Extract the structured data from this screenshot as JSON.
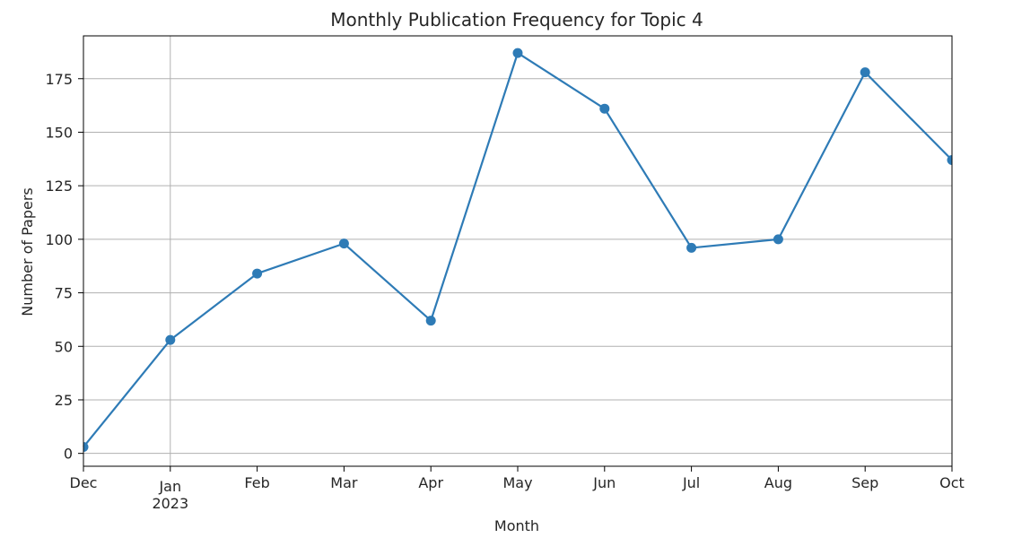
{
  "chart_data": {
    "type": "line",
    "title": "Monthly Publication Frequency for Topic 4",
    "xlabel": "Month",
    "ylabel": "Number of Papers",
    "x": [
      "2022-12",
      "2023-01",
      "2023-02",
      "2023-03",
      "2023-04",
      "2023-05",
      "2023-06",
      "2023-07",
      "2023-08",
      "2023-09",
      "2023-10"
    ],
    "categories": [
      "Dec",
      "Jan",
      "Feb",
      "Mar",
      "Apr",
      "May",
      "Jun",
      "Jul",
      "Aug",
      "Sep",
      "Oct"
    ],
    "year_label": "2023",
    "values": [
      3,
      53,
      84,
      98,
      62,
      187,
      161,
      96,
      100,
      178,
      137
    ],
    "ylim": [
      -6,
      195
    ],
    "yticks": [
      0,
      25,
      50,
      75,
      100,
      125,
      150,
      175
    ],
    "grid": true,
    "marker": "circle",
    "color": "#2e7bb6",
    "grid_color": "#b0b0b0"
  }
}
